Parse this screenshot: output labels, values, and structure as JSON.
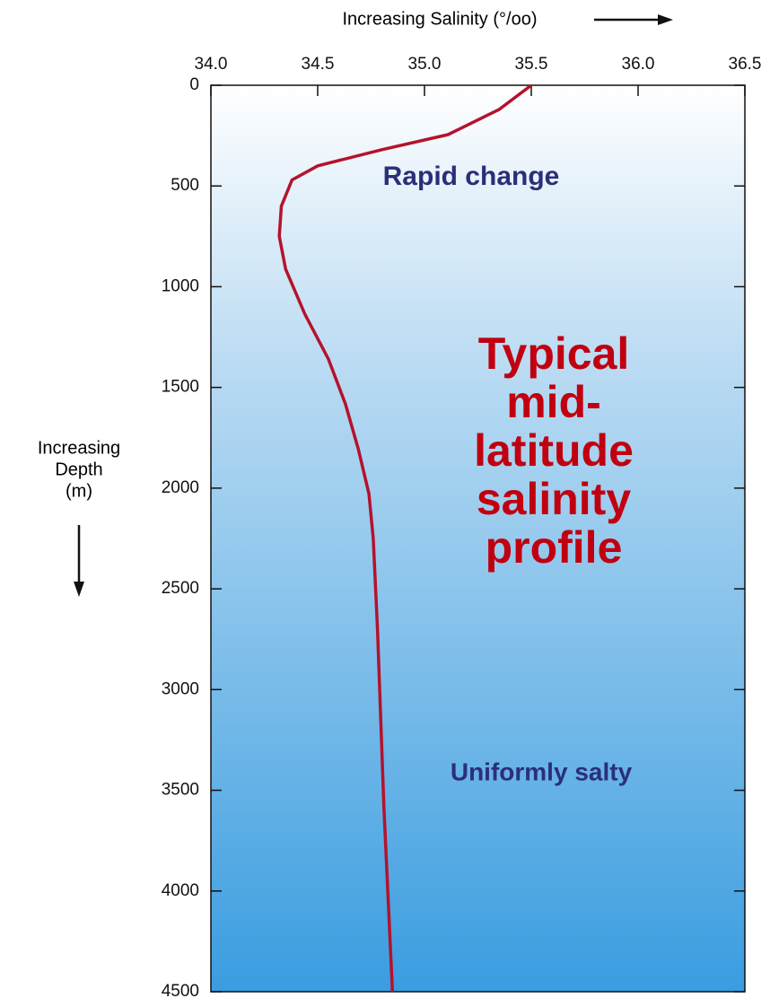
{
  "chart_data": {
    "type": "line",
    "title": "Increasing Salinity (°/oo)",
    "ylabel": [
      "Increasing",
      "Depth",
      "(m)"
    ],
    "x": [
      35.5,
      35.35,
      35.11,
      34.8,
      34.5,
      34.38,
      34.33,
      34.32,
      34.35,
      34.44,
      34.55,
      34.63,
      34.69,
      34.74,
      34.76,
      34.78,
      34.81,
      34.85
    ],
    "y": [
      0,
      120,
      245,
      320,
      400,
      470,
      600,
      750,
      913,
      1136,
      1359,
      1582,
      1805,
      2028,
      2250,
      2696,
      3587,
      4500
    ],
    "color": "#b5122c",
    "xlim": [
      34.0,
      36.5
    ],
    "xticks": [
      {
        "value": 34.0,
        "label": "34.0"
      },
      34.5,
      {
        "value": 35.0,
        "label": "35.0"
      },
      35.5,
      {
        "value": 36.0,
        "label": "36.0"
      },
      36.5
    ],
    "ylim": [
      0,
      4500
    ],
    "yticks": [
      0,
      500,
      1000,
      1500,
      2000,
      2500,
      3000,
      3500,
      4000,
      4500
    ],
    "y_inverted": true,
    "annotations": [
      {
        "text": [
          "Rapid change"
        ],
        "color": "#2b2f78"
      },
      {
        "text": [
          "Typical",
          "mid-",
          "latitude",
          "salinity",
          "profile"
        ],
        "color": "#c00010"
      },
      {
        "text": [
          "Uniformly salty"
        ],
        "color": "#2b2f78"
      }
    ]
  }
}
